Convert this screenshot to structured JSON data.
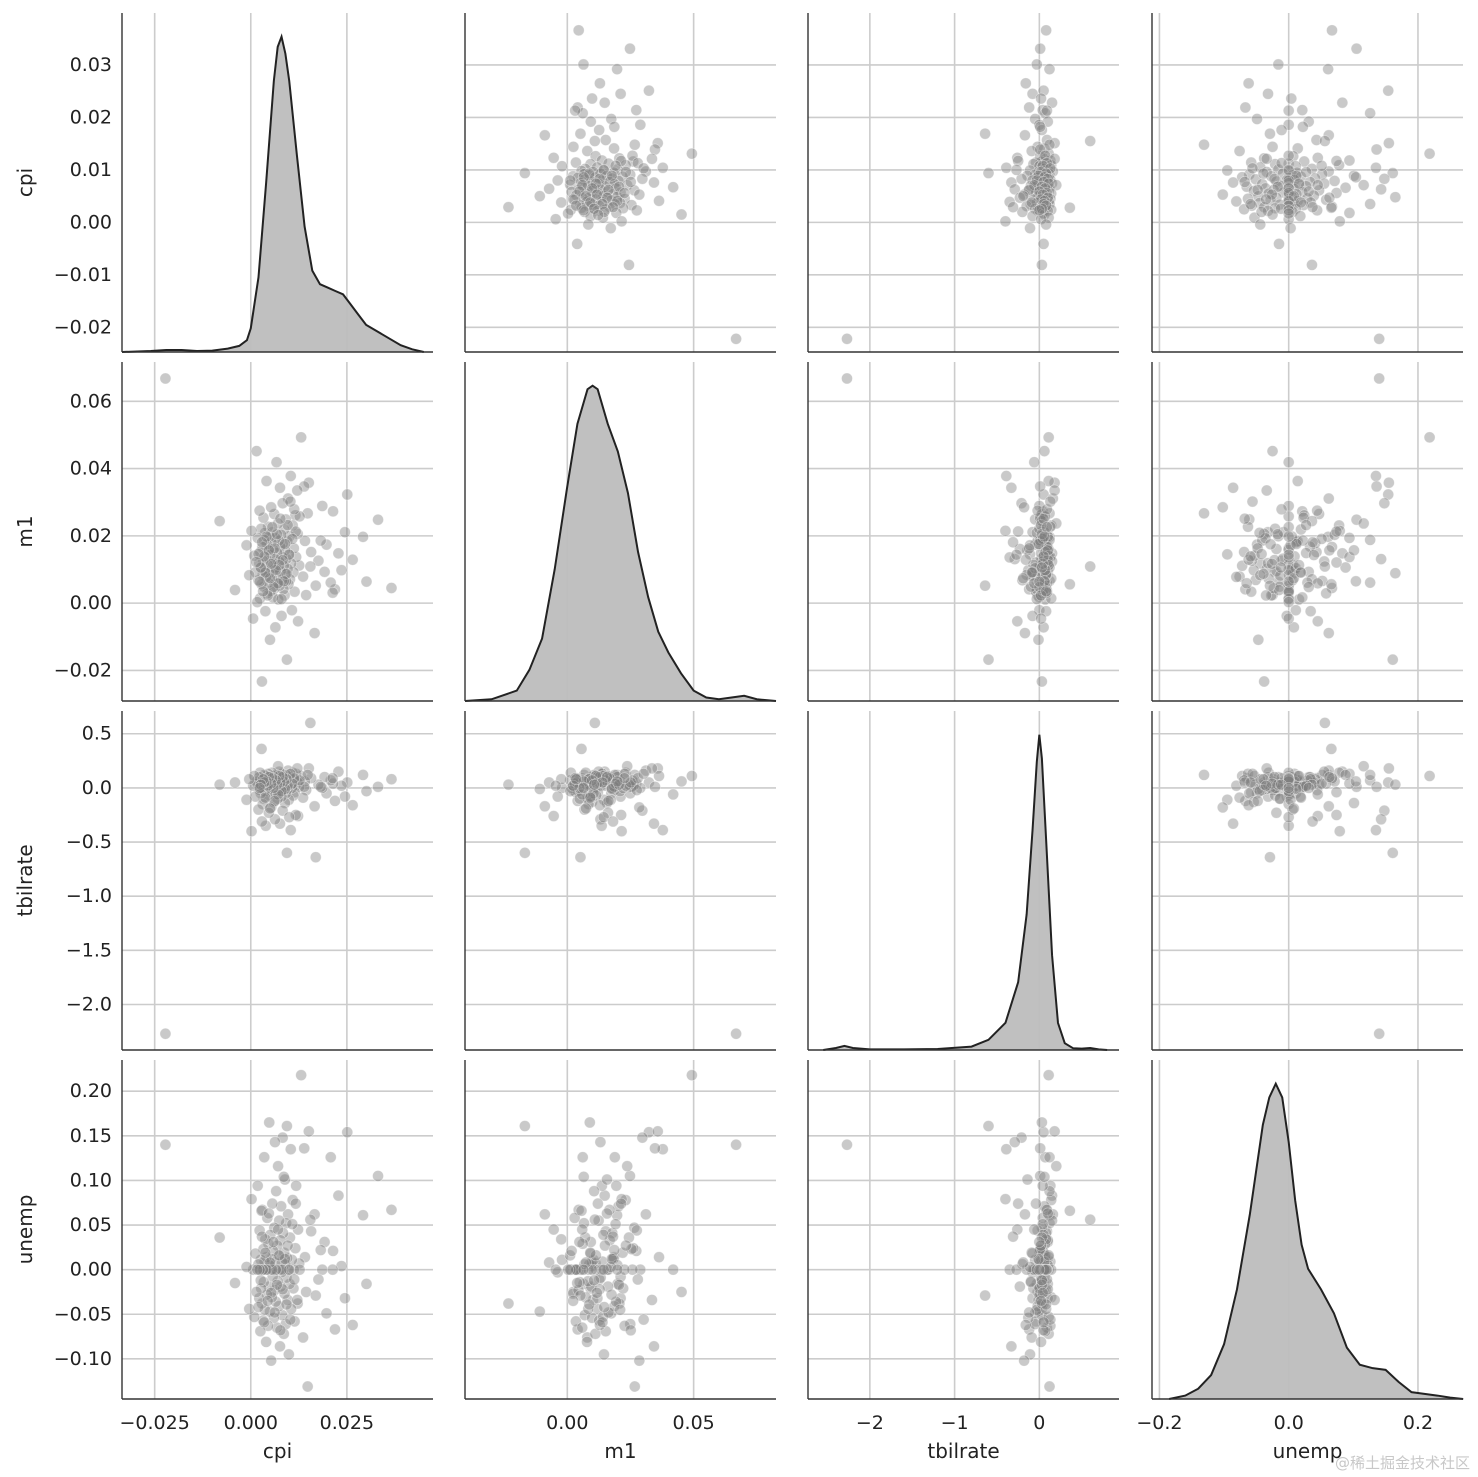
{
  "chart_data": {
    "type": "pairplot",
    "variables": [
      "cpi",
      "m1",
      "tbilrate",
      "unemp"
    ],
    "diag_kind": "kde",
    "grid": true,
    "colors": {
      "grid": "#cccccc",
      "axis": "#333333",
      "text": "#222222",
      "point": "#7f7f7f",
      "kde_fill": "#bdbdbd",
      "kde_line": "#222222"
    },
    "axes": {
      "cpi": {
        "label": "cpi",
        "range": [
          -0.0335,
          0.0474
        ],
        "ticks": [
          -0.025,
          0.0,
          0.025
        ],
        "tick_labels": [
          "−0.025",
          "0.000",
          "0.025"
        ],
        "y_ticks": [
          -0.02,
          -0.01,
          0.0,
          0.01,
          0.02,
          0.03
        ],
        "y_tick_labels": [
          "−0.02",
          "−0.01",
          "0.00",
          "0.01",
          "0.02",
          "0.03"
        ],
        "y_range": [
          -0.0247,
          0.0399
        ]
      },
      "m1": {
        "label": "m1",
        "range": [
          -0.0405,
          0.0826
        ],
        "ticks": [
          0.0,
          0.05
        ],
        "tick_labels": [
          "0.00",
          "0.05"
        ],
        "y_ticks": [
          -0.02,
          0.0,
          0.02,
          0.04,
          0.06
        ],
        "y_tick_labels": [
          "−0.02",
          "0.00",
          "0.02",
          "0.04",
          "0.06"
        ],
        "y_range": [
          -0.0291,
          0.0717
        ]
      },
      "tbilrate": {
        "label": "tbilrate",
        "range": [
          -2.73,
          0.94
        ],
        "ticks": [
          -2,
          -1,
          0
        ],
        "tick_labels": [
          "−2",
          "−1",
          "0"
        ],
        "y_ticks": [
          -2.0,
          -1.5,
          -1.0,
          -0.5,
          0.0,
          0.5
        ],
        "y_tick_labels": [
          "−2.0",
          "−1.5",
          "−1.0",
          "−0.5",
          "0.0",
          "0.5"
        ],
        "y_range": [
          -2.42,
          0.71
        ]
      },
      "unemp": {
        "label": "unemp",
        "range": [
          -0.2115,
          0.2697
        ],
        "ticks": [
          -0.2,
          0.0,
          0.2
        ],
        "tick_labels": [
          "−0.2",
          "0.0",
          "0.2"
        ],
        "y_ticks": [
          -0.1,
          -0.05,
          0.0,
          0.05,
          0.1,
          0.15,
          0.2
        ],
        "y_tick_labels": [
          "−0.10",
          "−0.05",
          "0.00",
          "0.05",
          "0.10",
          "0.15",
          "0.20"
        ],
        "y_range": [
          -0.145,
          0.235
        ]
      }
    },
    "diagonal_kde": {
      "cpi": {
        "x": [
          -0.0335,
          -0.026,
          -0.022,
          -0.018,
          -0.014,
          -0.01,
          -0.006,
          -0.003,
          -0.001,
          0.0,
          0.002,
          0.004,
          0.006,
          0.007,
          0.008,
          0.009,
          0.01,
          0.012,
          0.014,
          0.016,
          0.018,
          0.02,
          0.022,
          0.024,
          0.026,
          0.028,
          0.03,
          0.033,
          0.036,
          0.039,
          0.042,
          0.045
        ],
        "y": [
          0.0,
          0.003,
          0.006,
          0.006,
          0.003,
          0.004,
          0.01,
          0.018,
          0.035,
          0.07,
          0.22,
          0.5,
          0.8,
          0.9,
          0.93,
          0.88,
          0.8,
          0.58,
          0.37,
          0.24,
          0.2,
          0.19,
          0.18,
          0.17,
          0.14,
          0.11,
          0.08,
          0.06,
          0.04,
          0.02,
          0.008,
          0.0
        ]
      },
      "m1": {
        "x": [
          -0.0405,
          -0.03,
          -0.02,
          -0.015,
          -0.01,
          -0.005,
          0.0,
          0.004,
          0.008,
          0.01,
          0.012,
          0.016,
          0.02,
          0.024,
          0.028,
          0.032,
          0.036,
          0.04,
          0.045,
          0.05,
          0.055,
          0.06,
          0.065,
          0.07,
          0.075,
          0.0826
        ],
        "y": [
          0.0,
          0.005,
          0.03,
          0.09,
          0.18,
          0.38,
          0.62,
          0.8,
          0.9,
          0.91,
          0.9,
          0.8,
          0.72,
          0.6,
          0.43,
          0.3,
          0.2,
          0.14,
          0.08,
          0.03,
          0.01,
          0.005,
          0.01,
          0.015,
          0.005,
          0.0
        ]
      },
      "tbilrate": {
        "x": [
          -2.55,
          -2.4,
          -2.3,
          -2.2,
          -2.0,
          -1.6,
          -1.2,
          -0.8,
          -0.6,
          -0.4,
          -0.25,
          -0.15,
          -0.08,
          -0.03,
          0.0,
          0.03,
          0.08,
          0.15,
          0.22,
          0.3,
          0.4,
          0.5,
          0.6,
          0.7,
          0.8
        ],
        "y": [
          0.0,
          0.006,
          0.012,
          0.006,
          0.002,
          0.002,
          0.003,
          0.01,
          0.03,
          0.08,
          0.2,
          0.4,
          0.65,
          0.85,
          0.93,
          0.86,
          0.62,
          0.28,
          0.08,
          0.02,
          0.005,
          0.004,
          0.006,
          0.002,
          0.0
        ]
      },
      "unemp": {
        "x": [
          -0.185,
          -0.16,
          -0.14,
          -0.12,
          -0.1,
          -0.08,
          -0.06,
          -0.04,
          -0.03,
          -0.02,
          -0.01,
          0.0,
          0.01,
          0.02,
          0.03,
          0.05,
          0.07,
          0.09,
          0.11,
          0.13,
          0.15,
          0.17,
          0.19,
          0.21,
          0.23,
          0.25,
          0.27
        ],
        "y": [
          0.0,
          0.01,
          0.03,
          0.07,
          0.16,
          0.32,
          0.54,
          0.8,
          0.88,
          0.92,
          0.88,
          0.75,
          0.58,
          0.45,
          0.38,
          0.32,
          0.25,
          0.15,
          0.1,
          0.09,
          0.085,
          0.05,
          0.02,
          0.015,
          0.01,
          0.004,
          0.0
        ]
      }
    },
    "points": {
      "cpi": [
        -0.0222,
        0.0366,
        0.0331,
        0.0301,
        0.0292,
        0.0251,
        0.0245,
        0.0236,
        0.0228,
        0.0219,
        0.0214,
        0.0208,
        0.0197,
        0.0192,
        0.0186,
        0.0176,
        0.0166,
        0.0157,
        0.0151,
        0.0144,
        0.0141,
        0.0136,
        0.0131,
        0.0126,
        0.0123,
        0.0122,
        0.0118,
        0.0116,
        0.0114,
        0.0112,
        0.0111,
        0.0109,
        0.0107,
        0.0105,
        0.0104,
        0.0102,
        0.0101,
        0.0099,
        0.0098,
        0.0097,
        0.0096,
        0.0095,
        0.0094,
        0.0093,
        0.0092,
        0.0091,
        0.009,
        0.0089,
        0.0088,
        0.0087,
        0.0086,
        0.0085,
        0.0084,
        0.0083,
        0.0082,
        0.0081,
        0.008,
        0.0079,
        0.0078,
        0.0077,
        0.0076,
        0.0075,
        0.0074,
        0.0073,
        0.0072,
        0.0071,
        0.007,
        0.0069,
        0.0068,
        0.0067,
        0.0066,
        0.0065,
        0.0064,
        0.0063,
        0.0062,
        0.0061,
        0.006,
        0.0059,
        0.0058,
        0.0057,
        0.0056,
        0.0055,
        0.0054,
        0.0053,
        0.0052,
        0.0051,
        0.005,
        0.0049,
        0.0048,
        0.0047,
        0.0046,
        0.0045,
        0.0044,
        0.0043,
        0.0042,
        0.0041,
        0.004,
        0.0039,
        0.0038,
        0.0037,
        0.0036,
        0.0035,
        0.0034,
        0.0033,
        0.0032,
        0.0031,
        0.003,
        0.0029,
        0.0028,
        0.0027,
        0.0026,
        0.0025,
        0.0024,
        0.0023,
        0.0022,
        0.002,
        0.0018,
        0.0015,
        0.0012,
        0.0009,
        0.0006,
        0.0002,
        -0.0004,
        -0.0011,
        -0.0041,
        -0.0081,
        0.0265,
        0.0213,
        0.0182,
        0.0169,
        0.0155,
        0.0148,
        0.0139,
        0.0127,
        0.0121,
        0.0117,
        0.0113,
        0.0108,
        0.0103,
        0.01,
        0.0096,
        0.0093,
        0.0089,
        0.0086,
        0.0083,
        0.008,
        0.0077,
        0.0074,
        0.0071,
        0.0068,
        0.0065,
        0.0062,
        0.0059,
        0.0056,
        0.0053,
        0.005,
        0.0047,
        0.0044,
        0.0041,
        0.0038,
        0.0035,
        0.0032,
        0.0029,
        0.0026,
        0.0023,
        0.002,
        0.0017,
        0.0014,
        0.0011,
        0.0008,
        0.0005,
        0.0001
      ],
      "m1": [
        0.0668,
        0.0045,
        0.0248,
        0.0064,
        0.0197,
        0.0323,
        0.0211,
        0.0098,
        0.0148,
        0.0041,
        0.0273,
        0.0061,
        0.0174,
        0.0093,
        0.0289,
        0.0126,
        -0.0089,
        0.0152,
        0.0358,
        0.0024,
        0.0185,
        0.0079,
        0.0493,
        0.0112,
        -0.0054,
        0.0206,
        0.0137,
        0.0261,
        0.0034,
        0.0163,
        0.0092,
        0.0231,
        -0.0021,
        0.0118,
        0.0378,
        0.0071,
        0.0199,
        0.0145,
        0.0056,
        0.0311,
        0.0102,
        0.0184,
        -0.0168,
        0.0132,
        0.0066,
        0.0249,
        0.0087,
        0.0157,
        0.0023,
        0.0219,
        0.0111,
        0.0041,
        0.0178,
        0.0297,
        0.0069,
        0.0139,
        -0.0038,
        0.0203,
        0.0095,
        0.0168,
        0.0343,
        0.0052,
        0.0124,
        0.0186,
        0.0011,
        0.0237,
        0.0082,
        0.0149,
        0.0059,
        0.0419,
        0.0106,
        0.0193,
        -0.0072,
        0.0131,
        0.0044,
        0.0265,
        0.0098,
        0.0159,
        0.0017,
        0.0211,
        0.0121,
        0.0073,
        0.0181,
        0.0285,
        0.0036,
        0.0143,
        -0.0109,
        0.0198,
        0.0089,
        0.0161,
        0.0061,
        0.0227,
        0.0114,
        0.0029,
        0.0175,
        0.0363,
        0.0078,
        0.0136,
        -0.0024,
        0.0209,
        0.0097,
        0.0188,
        0.0049,
        0.0254,
        0.0126,
        0.0084,
        0.0167,
        -0.0233,
        0.0056,
        0.0221,
        0.0104,
        0.0152,
        0.0014,
        0.0275,
        0.0119,
        0.0068,
        0.0194,
        0.0452,
        0.0092,
        0.0141,
        -0.0046,
        0.0215,
        0.0083,
        0.0172,
        0.0039,
        0.0244,
        0.0129,
        0.0031,
        0.0186,
        0.0052,
        0.0109,
        0.0267,
        0.0347,
        0.0258,
        0.0335,
        0.0213,
        0.0279,
        0.0191,
        0.0302,
        0.0144,
        0.0232,
        0.0087,
        0.0176,
        0.0065,
        0.0128,
        0.0012,
        0.0251,
        0.0113,
        0.0059,
        0.0205,
        0.0098,
        0.0163,
        0.0048,
        0.0226,
        0.0117,
        0.0074,
        0.0157,
        0.0023,
        0.0198,
        0.0091,
        0.0139,
        0.0035,
        0.0181,
        0.0106,
        0.0064,
        0.0146,
        0.0003,
        0.0122
      ],
      "tbilrate": [
        -2.27,
        0.08,
        0.01,
        -0.03,
        0.12,
        0.05,
        -0.08,
        0.02,
        0.15,
        -0.12,
        0.04,
        0.07,
        -0.05,
        0.1,
        0.0,
        0.03,
        -0.17,
        0.09,
        0.18,
        -0.02,
        0.06,
        -0.09,
        0.11,
        0.01,
        -0.26,
        0.05,
        0.13,
        0.02,
        -0.04,
        0.08,
        -0.07,
        0.14,
        0.0,
        0.03,
        -0.39,
        0.06,
        0.1,
        -0.11,
        0.04,
        0.16,
        -0.01,
        0.07,
        -0.6,
        0.02,
        0.12,
        -0.05,
        0.09,
        -0.14,
        0.01,
        0.05,
        0.11,
        -0.03,
        0.08,
        -0.21,
        0.03,
        0.13,
        -0.08,
        0.06,
        0.0,
        0.1,
        -0.33,
        0.04,
        0.15,
        -0.02,
        0.07,
        0.2,
        -0.1,
        0.02,
        0.09,
        -0.06,
        0.12,
        0.01,
        0.05,
        -0.29,
        0.08,
        0.03,
        -0.13,
        0.11,
        0.0,
        0.06,
        -0.04,
        0.14,
        0.02,
        -0.18,
        0.09,
        0.05,
        -0.01,
        0.1,
        0.03,
        -0.23,
        0.07,
        0.13,
        -0.07,
        0.04,
        0.0,
        0.11,
        0.02,
        -0.35,
        0.08,
        -0.03,
        0.06,
        0.12,
        -0.1,
        0.01,
        0.05,
        -0.15,
        0.09,
        0.03,
        0.36,
        0.0,
        -0.05,
        0.07,
        0.14,
        -0.02,
        0.1,
        -0.2,
        0.04,
        0.06,
        -0.08,
        0.11,
        0.02,
        -0.4,
        0.08,
        -0.11,
        0.05,
        0.03,
        -0.16,
        0.09,
        0.01,
        -0.64,
        0.6,
        0.12,
        0.01,
        0.07,
        0.18,
        -0.25,
        0.09,
        0.04,
        0.13,
        -0.27,
        0.02,
        0.08,
        -0.01,
        0.06,
        0.1,
        -0.03,
        0.05,
        0.11,
        -0.06,
        0.03,
        0.07,
        -0.12,
        0.0,
        0.09,
        0.04,
        -0.19,
        0.1,
        0.02,
        0.06,
        -0.09,
        0.05,
        0.08,
        -0.31,
        0.03,
        0.0
      ],
      "unemp": [
        0.14,
        0.067,
        0.105,
        -0.016,
        0.061,
        0.154,
        -0.032,
        0.004,
        0.083,
        -0.067,
        0.021,
        0.126,
        -0.049,
        0.031,
        0.0,
        -0.011,
        0.062,
        0.043,
        0.155,
        -0.025,
        0.014,
        -0.076,
        0.218,
        0.007,
        0.045,
        -0.038,
        0.094,
        0.024,
        -0.058,
        0.0,
        -0.021,
        0.078,
        0.011,
        -0.044,
        0.135,
        0.036,
        -0.016,
        -0.095,
        0.0,
        0.062,
        -0.034,
        0.013,
        0.161,
        -0.009,
        0.052,
        -0.061,
        0.006,
        0.101,
        -0.027,
        0.019,
        -0.072,
        0.0,
        0.041,
        0.148,
        -0.051,
        0.009,
        -0.003,
        0.071,
        -0.019,
        0.033,
        -0.086,
        0.0,
        0.055,
        -0.041,
        0.016,
        0.116,
        -0.013,
        0.027,
        -0.065,
        0.0,
        0.088,
        -0.036,
        0.008,
        0.143,
        -0.023,
        0.047,
        -0.054,
        0.0,
        0.021,
        -0.008,
        0.074,
        -0.031,
        0.012,
        -0.102,
        0.0,
        0.039,
        -0.047,
        0.005,
        0.165,
        -0.019,
        0.029,
        -0.063,
        0.0,
        0.058,
        -0.028,
        0.014,
        -0.081,
        0.0,
        0.034,
        -0.045,
        0.009,
        0.126,
        -0.014,
        0.023,
        -0.057,
        0.0,
        0.067,
        -0.038,
        0.066,
        -0.021,
        0.011,
        -0.069,
        0.0,
        0.044,
        -0.032,
        0.006,
        0.094,
        -0.025,
        0.018,
        -0.053,
        0.0,
        0.079,
        -0.044,
        0.003,
        -0.015,
        0.036,
        -0.062,
        0.0,
        0.022,
        -0.029,
        0.056,
        -0.131,
        0.136,
        0.0,
        -0.034,
        0.074,
        -0.011,
        0.051,
        -0.056,
        0.0,
        0.027,
        -0.039,
        0.012,
        0.104,
        -0.022,
        0.0,
        -0.068,
        0.016,
        0.045,
        -0.017,
        0.0,
        -0.048,
        0.031,
        0.0,
        -0.026,
        0.008,
        0.063,
        -0.035,
        0.0,
        0.019,
        -0.059,
        0.0,
        0.037,
        -0.012,
        0.0,
        -0.042,
        0.0
      ]
    }
  },
  "watermark": "@稀土掘金技术社区"
}
